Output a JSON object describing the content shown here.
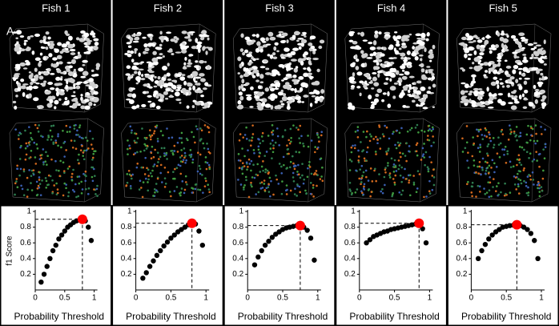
{
  "panel_label": "A",
  "chart_data": [
    {
      "type": "scatter",
      "title": "Fish 1",
      "xlabel": "Probability Threshold",
      "ylabel": "f1 Score",
      "x": [
        0.1,
        0.15,
        0.2,
        0.25,
        0.3,
        0.35,
        0.4,
        0.45,
        0.5,
        0.55,
        0.6,
        0.65,
        0.7,
        0.75,
        0.8,
        0.85,
        0.9,
        0.95
      ],
      "values": [
        0.1,
        0.2,
        0.3,
        0.4,
        0.5,
        0.57,
        0.65,
        0.7,
        0.75,
        0.8,
        0.83,
        0.86,
        0.88,
        0.89,
        0.9,
        0.88,
        0.8,
        0.63
      ],
      "color": "#000000",
      "highlight_index": 14,
      "highlight_color": "#ff0000",
      "xlim": [
        0,
        1
      ],
      "ylim": [
        0,
        1
      ],
      "xticks": [
        0,
        0.5,
        1
      ],
      "yticks": [
        0.2,
        0.4,
        0.6,
        0.8,
        1
      ]
    },
    {
      "type": "scatter",
      "title": "Fish 2",
      "xlabel": "Probability Threshold",
      "x": [
        0.1,
        0.15,
        0.2,
        0.25,
        0.3,
        0.35,
        0.4,
        0.45,
        0.5,
        0.55,
        0.6,
        0.65,
        0.7,
        0.75,
        0.8,
        0.85,
        0.9,
        0.95
      ],
      "values": [
        0.15,
        0.22,
        0.3,
        0.37,
        0.44,
        0.5,
        0.56,
        0.61,
        0.66,
        0.7,
        0.74,
        0.77,
        0.8,
        0.83,
        0.85,
        0.84,
        0.75,
        0.57
      ],
      "color": "#000000",
      "highlight_index": 14,
      "highlight_color": "#ff0000",
      "xlim": [
        0,
        1
      ],
      "ylim": [
        0,
        1
      ],
      "xticks": [
        0,
        0.5,
        1
      ],
      "yticks": [
        0.2,
        0.4,
        0.6,
        0.8,
        1
      ]
    },
    {
      "type": "scatter",
      "title": "Fish 3",
      "xlabel": "Probability Threshold",
      "x": [
        0.1,
        0.15,
        0.2,
        0.25,
        0.3,
        0.35,
        0.4,
        0.45,
        0.5,
        0.55,
        0.6,
        0.65,
        0.7,
        0.75,
        0.8,
        0.85,
        0.9,
        0.95
      ],
      "values": [
        0.32,
        0.42,
        0.5,
        0.57,
        0.62,
        0.67,
        0.71,
        0.74,
        0.77,
        0.79,
        0.8,
        0.81,
        0.82,
        0.82,
        0.8,
        0.76,
        0.66,
        0.38
      ],
      "color": "#000000",
      "highlight_index": 13,
      "highlight_color": "#ff0000",
      "xlim": [
        0,
        1
      ],
      "ylim": [
        0,
        1
      ],
      "xticks": [
        0,
        0.5,
        1
      ],
      "yticks": [
        0.2,
        0.4,
        0.6,
        0.8,
        1
      ]
    },
    {
      "type": "scatter",
      "title": "Fish 4",
      "xlabel": "Probability Threshold",
      "x": [
        0.1,
        0.15,
        0.2,
        0.25,
        0.3,
        0.35,
        0.4,
        0.45,
        0.5,
        0.55,
        0.6,
        0.65,
        0.7,
        0.75,
        0.8,
        0.85,
        0.9,
        0.95
      ],
      "values": [
        0.6,
        0.64,
        0.68,
        0.7,
        0.72,
        0.74,
        0.75,
        0.77,
        0.78,
        0.79,
        0.8,
        0.81,
        0.82,
        0.83,
        0.84,
        0.85,
        0.78,
        0.6
      ],
      "color": "#000000",
      "highlight_index": 15,
      "highlight_color": "#ff0000",
      "xlim": [
        0,
        1
      ],
      "ylim": [
        0,
        1
      ],
      "xticks": [
        0,
        0.5,
        1
      ],
      "yticks": [
        0.2,
        0.4,
        0.6,
        0.8,
        1
      ]
    },
    {
      "type": "scatter",
      "title": "Fish 5",
      "xlabel": "Probability Threshold",
      "x": [
        0.1,
        0.15,
        0.2,
        0.25,
        0.3,
        0.35,
        0.4,
        0.45,
        0.5,
        0.55,
        0.6,
        0.65,
        0.7,
        0.75,
        0.8,
        0.85,
        0.9,
        0.95
      ],
      "values": [
        0.4,
        0.5,
        0.58,
        0.65,
        0.7,
        0.74,
        0.77,
        0.8,
        0.81,
        0.82,
        0.825,
        0.83,
        0.82,
        0.8,
        0.77,
        0.72,
        0.63,
        0.4
      ],
      "color": "#000000",
      "highlight_index": 11,
      "highlight_color": "#ff0000",
      "xlim": [
        0,
        1
      ],
      "ylim": [
        0,
        1
      ],
      "xticks": [
        0,
        0.5,
        1
      ],
      "yticks": [
        0.2,
        0.4,
        0.6,
        0.8,
        1
      ]
    }
  ]
}
